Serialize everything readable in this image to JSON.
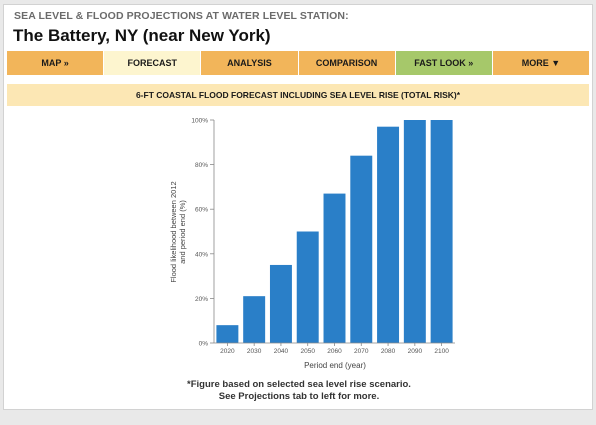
{
  "header": {
    "kicker": "SEA LEVEL & FLOOD PROJECTIONS AT WATER LEVEL STATION:",
    "title": "The Battery, NY (near New York)"
  },
  "nav": {
    "tabs": [
      {
        "label": "MAP »"
      },
      {
        "label": "FORECAST"
      },
      {
        "label": "ANALYSIS"
      },
      {
        "label": "COMPARISON"
      },
      {
        "label": "FAST LOOK »"
      },
      {
        "label": "MORE ▼"
      }
    ]
  },
  "banner": {
    "text": "6-FT COASTAL FLOOD FORECAST INCLUDING SEA LEVEL RISE (TOTAL RISK)*"
  },
  "colors": {
    "tab_default": "#f2b55a",
    "tab_active": "#fdf5cf",
    "tab_green": "#a6c86a",
    "banner": "#fce7b4",
    "bar": "#2a7fc8"
  },
  "chart_data": {
    "type": "bar",
    "categories": [
      "2020",
      "2030",
      "2040",
      "2050",
      "2060",
      "2070",
      "2080",
      "2090",
      "2100"
    ],
    "values": [
      8,
      21,
      35,
      50,
      67,
      84,
      97,
      100,
      100
    ],
    "ylabel": "Flood likelihood between 2012 and period end (%)",
    "ylabel_lines": [
      "Flood likelihood between 2012",
      "and period end (%)"
    ],
    "xlabel": "Period end (year)",
    "ylim": [
      0,
      100
    ],
    "yticks": [
      "0%",
      "20%",
      "40%",
      "60%",
      "80%",
      "100%"
    ],
    "grid": false,
    "legend": "none"
  },
  "footnote": {
    "line1": "*Figure based on selected sea level rise scenario.",
    "line2": "See Projections tab to left for more."
  }
}
